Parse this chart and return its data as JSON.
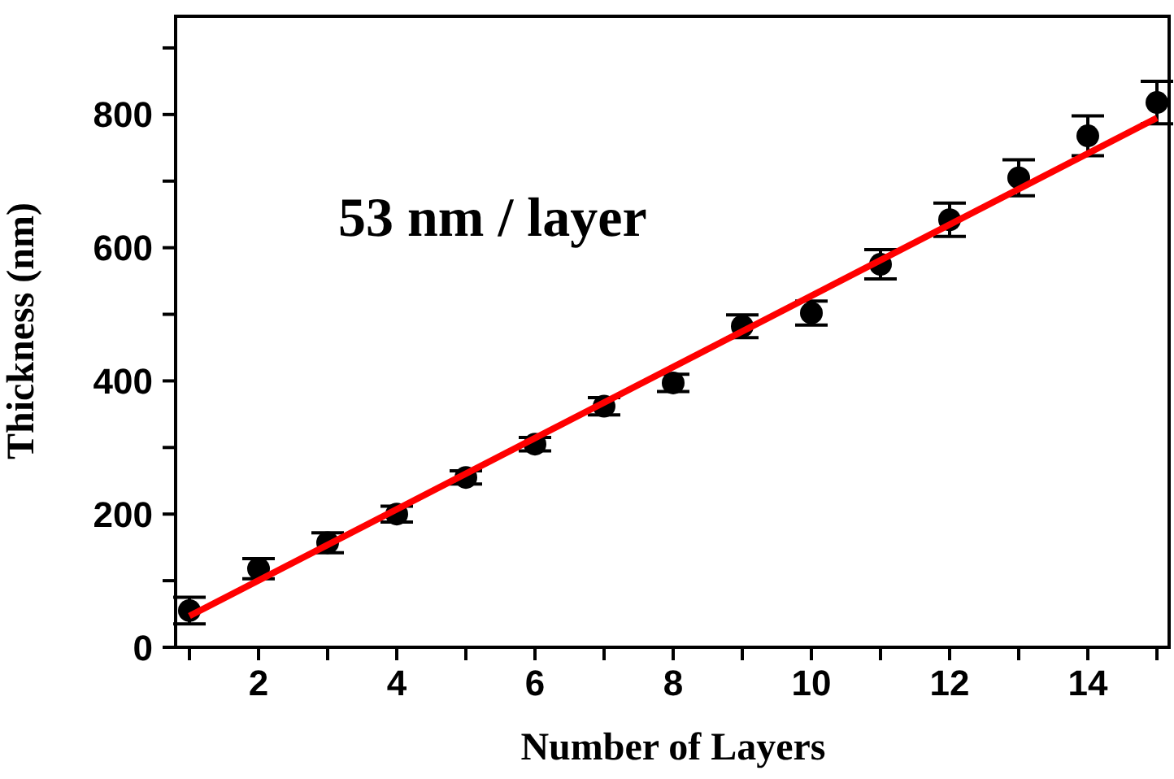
{
  "chart_data": {
    "type": "scatter",
    "xlabel": "Number of Layers",
    "ylabel": "Thickness (nm)",
    "annotations": [
      "53 nm / layer"
    ],
    "xlim": [
      0.8,
      15.2
    ],
    "ylim": [
      0,
      950
    ],
    "xticks": [
      {
        "value": 1,
        "label": null
      },
      2,
      {
        "value": 3,
        "label": null
      },
      4,
      {
        "value": 5,
        "label": null
      },
      6,
      {
        "value": 7,
        "label": null
      },
      8,
      {
        "value": 9,
        "label": null
      },
      10,
      {
        "value": 11,
        "label": null
      },
      12,
      {
        "value": 13,
        "label": null
      },
      14,
      {
        "value": 15,
        "label": null
      }
    ],
    "yticks": [
      0,
      {
        "value": 100,
        "label": null
      },
      200,
      {
        "value": 300,
        "label": null
      },
      400,
      {
        "value": 500,
        "label": null
      },
      600,
      {
        "value": 700,
        "label": null
      },
      800,
      {
        "value": 900,
        "label": null
      }
    ],
    "grid": false,
    "marker": "circle",
    "series": [
      {
        "color": "#000000",
        "x": [
          1,
          2,
          3,
          4,
          5,
          6,
          7,
          8,
          9,
          10,
          11,
          12,
          13,
          14,
          15
        ],
        "values": [
          55,
          118,
          157,
          200,
          255,
          305,
          362,
          397,
          482,
          502,
          575,
          642,
          705,
          768,
          818
        ],
        "errors": [
          20,
          15,
          15,
          12,
          10,
          10,
          13,
          13,
          17,
          18,
          22,
          25,
          27,
          30,
          32
        ]
      },
      {
        "type": "line",
        "color": "#ff0000",
        "x": [
          1,
          15
        ],
        "values": [
          47,
          795
        ],
        "marker": "none"
      }
    ]
  }
}
